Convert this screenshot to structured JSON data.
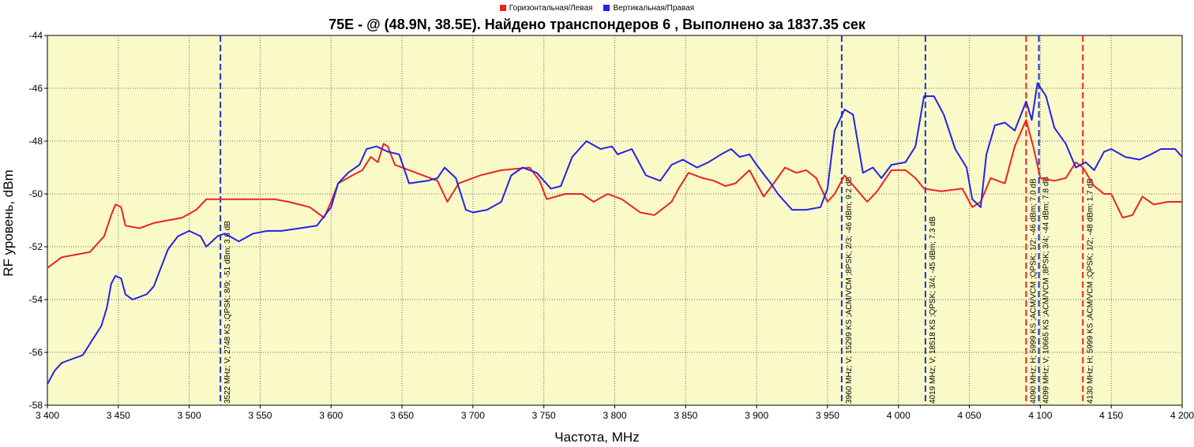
{
  "legend": [
    {
      "name": "Горизонтальная/Левая",
      "color": "#ee2222"
    },
    {
      "name": "Вертикальная/Правая",
      "color": "#2222ee"
    }
  ],
  "chart_data": {
    "type": "line",
    "title": "75E -  @  (48.9N, 38.5E). Найдено транспондеров 6 , Выполнено за 1837.35 сек",
    "xlabel": "Частота, MHz",
    "ylabel": "RF уровень, dBm",
    "xlim": [
      3400,
      4200
    ],
    "ylim": [
      -58,
      -44
    ],
    "grid": true,
    "background": "#fafac8",
    "legend_position": "top",
    "x_ticks": [
      {
        "value": 3400,
        "label": "3 400"
      },
      {
        "value": 3450,
        "label": "3 450"
      },
      {
        "value": 3500,
        "label": "3 500"
      },
      {
        "value": 3550,
        "label": "3 550"
      },
      {
        "value": 3600,
        "label": "3 600"
      },
      {
        "value": 3650,
        "label": "3 650"
      },
      {
        "value": 3700,
        "label": "3 700"
      },
      {
        "value": 3750,
        "label": "3 750"
      },
      {
        "value": 3800,
        "label": "3 800"
      },
      {
        "value": 3850,
        "label": "3 850"
      },
      {
        "value": 3900,
        "label": "3 900"
      },
      {
        "value": 3950,
        "label": "3 950"
      },
      {
        "value": 4000,
        "label": "4 000"
      },
      {
        "value": 4050,
        "label": "4 050"
      },
      {
        "value": 4100,
        "label": "4 100"
      },
      {
        "value": 4150,
        "label": "4 150"
      },
      {
        "value": 4200,
        "label": "4 200"
      }
    ],
    "y_ticks": [
      {
        "value": -44,
        "label": "-44"
      },
      {
        "value": -46,
        "label": "-46"
      },
      {
        "value": -48,
        "label": "-48"
      },
      {
        "value": -50,
        "label": "-50"
      },
      {
        "value": -52,
        "label": "-52"
      },
      {
        "value": -54,
        "label": "-54"
      },
      {
        "value": -56,
        "label": "-56"
      },
      {
        "value": -58,
        "label": "-58"
      }
    ],
    "series": [
      {
        "name": "Горизонтальная/Левая",
        "color": "#ee2222",
        "points": [
          [
            3400,
            -52.8
          ],
          [
            3410,
            -52.4
          ],
          [
            3420,
            -52.3
          ],
          [
            3430,
            -52.2
          ],
          [
            3440,
            -51.6
          ],
          [
            3445,
            -50.8
          ],
          [
            3448,
            -50.4
          ],
          [
            3452,
            -50.5
          ],
          [
            3455,
            -51.2
          ],
          [
            3465,
            -51.3
          ],
          [
            3475,
            -51.1
          ],
          [
            3485,
            -51.0
          ],
          [
            3495,
            -50.9
          ],
          [
            3505,
            -50.6
          ],
          [
            3512,
            -50.2
          ],
          [
            3525,
            -50.2
          ],
          [
            3540,
            -50.2
          ],
          [
            3560,
            -50.2
          ],
          [
            3570,
            -50.3
          ],
          [
            3585,
            -50.5
          ],
          [
            3595,
            -50.9
          ],
          [
            3600,
            -50.3
          ],
          [
            3605,
            -49.6
          ],
          [
            3615,
            -49.3
          ],
          [
            3622,
            -49.1
          ],
          [
            3628,
            -48.6
          ],
          [
            3633,
            -48.8
          ],
          [
            3637,
            -48.1
          ],
          [
            3640,
            -48.2
          ],
          [
            3645,
            -48.9
          ],
          [
            3660,
            -49.2
          ],
          [
            3675,
            -49.5
          ],
          [
            3682,
            -50.3
          ],
          [
            3690,
            -49.6
          ],
          [
            3705,
            -49.3
          ],
          [
            3720,
            -49.1
          ],
          [
            3740,
            -49.0
          ],
          [
            3747,
            -49.5
          ],
          [
            3752,
            -50.2
          ],
          [
            3765,
            -50.0
          ],
          [
            3777,
            -50.0
          ],
          [
            3785,
            -50.3
          ],
          [
            3795,
            -50.0
          ],
          [
            3805,
            -50.2
          ],
          [
            3818,
            -50.7
          ],
          [
            3828,
            -50.8
          ],
          [
            3840,
            -50.3
          ],
          [
            3845,
            -49.8
          ],
          [
            3852,
            -49.2
          ],
          [
            3862,
            -49.4
          ],
          [
            3870,
            -49.5
          ],
          [
            3878,
            -49.7
          ],
          [
            3885,
            -49.6
          ],
          [
            3895,
            -49.1
          ],
          [
            3905,
            -50.1
          ],
          [
            3912,
            -49.6
          ],
          [
            3920,
            -49.0
          ],
          [
            3928,
            -49.2
          ],
          [
            3935,
            -49.1
          ],
          [
            3942,
            -49.4
          ],
          [
            3950,
            -50.3
          ],
          [
            3955,
            -50.0
          ],
          [
            3962,
            -49.3
          ],
          [
            3970,
            -49.8
          ],
          [
            3978,
            -50.3
          ],
          [
            3985,
            -49.9
          ],
          [
            3995,
            -49.1
          ],
          [
            4005,
            -49.1
          ],
          [
            4012,
            -49.4
          ],
          [
            4018,
            -49.8
          ],
          [
            4030,
            -49.9
          ],
          [
            4045,
            -49.8
          ],
          [
            4052,
            -50.5
          ],
          [
            4058,
            -50.3
          ],
          [
            4065,
            -49.4
          ],
          [
            4075,
            -49.6
          ],
          [
            4082,
            -48.2
          ],
          [
            4090,
            -47.2
          ],
          [
            4095,
            -48.2
          ],
          [
            4100,
            -49.4
          ],
          [
            4110,
            -49.5
          ],
          [
            4118,
            -49.4
          ],
          [
            4125,
            -48.8
          ],
          [
            4130,
            -49.0
          ],
          [
            4138,
            -49.7
          ],
          [
            4145,
            -50.0
          ],
          [
            4150,
            -50.0
          ],
          [
            4158,
            -50.9
          ],
          [
            4165,
            -50.8
          ],
          [
            4172,
            -50.1
          ],
          [
            4180,
            -50.4
          ],
          [
            4190,
            -50.3
          ],
          [
            4200,
            -50.3
          ]
        ]
      },
      {
        "name": "Вертикальная/Правая",
        "color": "#2222ee",
        "points": [
          [
            3400,
            -57.2
          ],
          [
            3405,
            -56.7
          ],
          [
            3410,
            -56.4
          ],
          [
            3415,
            -56.3
          ],
          [
            3425,
            -56.1
          ],
          [
            3432,
            -55.5
          ],
          [
            3438,
            -55.0
          ],
          [
            3442,
            -54.3
          ],
          [
            3445,
            -53.4
          ],
          [
            3448,
            -53.1
          ],
          [
            3452,
            -53.2
          ],
          [
            3455,
            -53.8
          ],
          [
            3460,
            -54.0
          ],
          [
            3470,
            -53.8
          ],
          [
            3475,
            -53.5
          ],
          [
            3480,
            -52.8
          ],
          [
            3485,
            -52.1
          ],
          [
            3492,
            -51.6
          ],
          [
            3500,
            -51.4
          ],
          [
            3508,
            -51.6
          ],
          [
            3512,
            -52.0
          ],
          [
            3520,
            -51.6
          ],
          [
            3525,
            -51.5
          ],
          [
            3535,
            -51.8
          ],
          [
            3545,
            -51.5
          ],
          [
            3555,
            -51.4
          ],
          [
            3565,
            -51.4
          ],
          [
            3578,
            -51.3
          ],
          [
            3590,
            -51.2
          ],
          [
            3600,
            -50.5
          ],
          [
            3605,
            -49.6
          ],
          [
            3612,
            -49.2
          ],
          [
            3620,
            -48.9
          ],
          [
            3625,
            -48.3
          ],
          [
            3632,
            -48.2
          ],
          [
            3640,
            -48.4
          ],
          [
            3648,
            -48.5
          ],
          [
            3655,
            -49.6
          ],
          [
            3668,
            -49.5
          ],
          [
            3675,
            -49.4
          ],
          [
            3680,
            -49.0
          ],
          [
            3688,
            -49.4
          ],
          [
            3695,
            -50.6
          ],
          [
            3700,
            -50.7
          ],
          [
            3710,
            -50.6
          ],
          [
            3720,
            -50.3
          ],
          [
            3727,
            -49.3
          ],
          [
            3735,
            -49.0
          ],
          [
            3745,
            -49.2
          ],
          [
            3755,
            -49.8
          ],
          [
            3762,
            -49.7
          ],
          [
            3770,
            -48.6
          ],
          [
            3780,
            -48.0
          ],
          [
            3790,
            -48.3
          ],
          [
            3798,
            -48.2
          ],
          [
            3802,
            -48.5
          ],
          [
            3812,
            -48.3
          ],
          [
            3822,
            -49.3
          ],
          [
            3832,
            -49.5
          ],
          [
            3840,
            -48.9
          ],
          [
            3848,
            -48.7
          ],
          [
            3858,
            -49.0
          ],
          [
            3866,
            -48.8
          ],
          [
            3875,
            -48.5
          ],
          [
            3882,
            -48.3
          ],
          [
            3888,
            -48.6
          ],
          [
            3895,
            -48.5
          ],
          [
            3900,
            -48.9
          ],
          [
            3910,
            -49.6
          ],
          [
            3915,
            -50.0
          ],
          [
            3925,
            -50.6
          ],
          [
            3935,
            -50.6
          ],
          [
            3945,
            -50.5
          ],
          [
            3950,
            -49.8
          ],
          [
            3955,
            -47.6
          ],
          [
            3962,
            -46.8
          ],
          [
            3968,
            -47.0
          ],
          [
            3975,
            -49.2
          ],
          [
            3982,
            -49.0
          ],
          [
            3988,
            -49.4
          ],
          [
            3995,
            -48.9
          ],
          [
            4005,
            -48.8
          ],
          [
            4012,
            -48.2
          ],
          [
            4018,
            -46.3
          ],
          [
            4025,
            -46.3
          ],
          [
            4032,
            -47.0
          ],
          [
            4040,
            -48.3
          ],
          [
            4048,
            -49.0
          ],
          [
            4052,
            -50.2
          ],
          [
            4058,
            -50.5
          ],
          [
            4062,
            -48.5
          ],
          [
            4068,
            -47.4
          ],
          [
            4075,
            -47.3
          ],
          [
            4082,
            -47.6
          ],
          [
            4090,
            -46.5
          ],
          [
            4094,
            -47.2
          ],
          [
            4098,
            -45.8
          ],
          [
            4104,
            -46.3
          ],
          [
            4110,
            -47.5
          ],
          [
            4118,
            -48.1
          ],
          [
            4125,
            -49.0
          ],
          [
            4132,
            -48.8
          ],
          [
            4138,
            -49.1
          ],
          [
            4145,
            -48.4
          ],
          [
            4150,
            -48.3
          ],
          [
            4160,
            -48.6
          ],
          [
            4170,
            -48.7
          ],
          [
            4178,
            -48.5
          ],
          [
            4185,
            -48.3
          ],
          [
            4195,
            -48.3
          ],
          [
            4200,
            -48.6
          ]
        ]
      }
    ],
    "markers": [
      {
        "freq": 3522,
        "color": "#2233cc",
        "label": "3522 MHz; V; 2748 KS ;QPSK; 8/9; -51 dBm; 3.6 dB"
      },
      {
        "freq": 3960,
        "color": "#2233cc",
        "label": "3960 MHz; V; 15299 KS ;ACM/VCM ;8PSK; 2/3; -46 dBm; 9.2 dB"
      },
      {
        "freq": 4019,
        "color": "#2233cc",
        "label": "4019 MHz; V; 18518 KS ;QPSK; 3/4; -45 dBm; 7.3 dB"
      },
      {
        "freq": 4090,
        "color": "#ee2222",
        "label": "4090 MHz; H; 5999 KS ;ACM/VCM ;QPSK; 1/2; -46 dBm; 7.0 dB"
      },
      {
        "freq": 4099,
        "color": "#2233cc",
        "label": "4099 MHz; V; 10665 KS ;ACM/VCM ;8PSK; 3/4; -44 dBm; 7.8 dB"
      },
      {
        "freq": 4130,
        "color": "#ee2222",
        "label": "4130 MHz; H; 5999 KS ;ACM/VCM ;QPSK; 1/2; -48 dBm; 1.7 dB"
      }
    ]
  }
}
